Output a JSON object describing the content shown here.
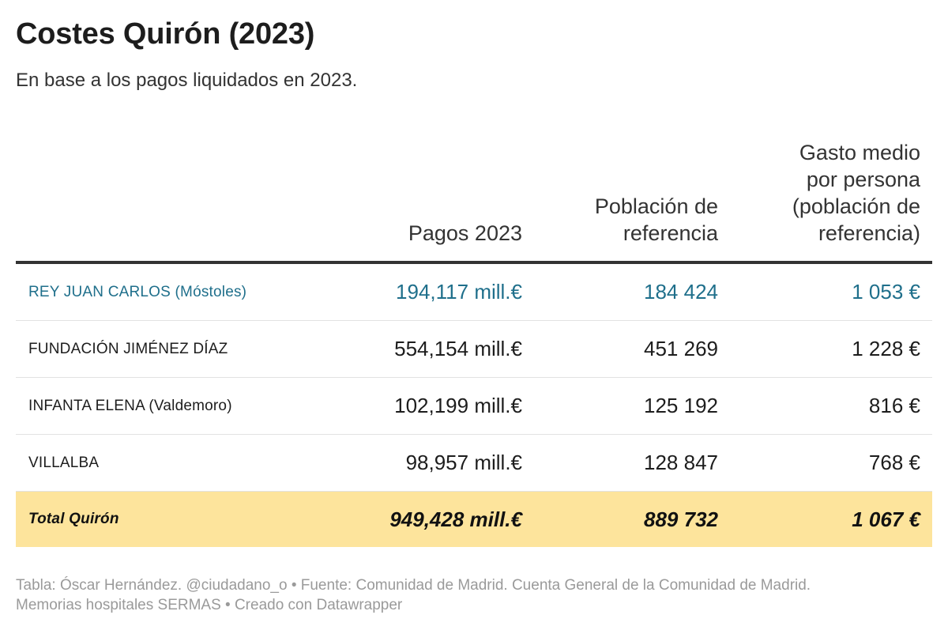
{
  "title": "Costes Quirón (2023)",
  "subtitle": "En base a los pagos liquidados en 2023.",
  "chart_data": {
    "type": "table",
    "columns": [
      "",
      "Pagos 2023",
      [
        "Población de",
        "referencia"
      ],
      [
        "Gasto medio",
        "por persona",
        "(población de",
        "referencia)"
      ]
    ],
    "rows": [
      {
        "name": "REY JUAN CARLOS (Móstoles)",
        "pagos": "194,117 mill.€",
        "poblacion": "184 424",
        "gasto": "1 053 €",
        "highlight": true
      },
      {
        "name": "FUNDACIÓN JIMÉNEZ DÍAZ",
        "pagos": "554,154 mill.€",
        "poblacion": "451 269",
        "gasto": "1 228 €"
      },
      {
        "name": "INFANTA ELENA (Valdemoro)",
        "pagos": "102,199 mill.€",
        "poblacion": "125 192",
        "gasto": "816 €"
      },
      {
        "name": "VILLALBA",
        "pagos": "98,957 mill.€",
        "poblacion": "128 847",
        "gasto": "768 €"
      }
    ],
    "total": {
      "name": "Total Quirón",
      "pagos": "949,428 mill.€",
      "poblacion": "889 732",
      "gasto": "1 067 €"
    }
  },
  "colors": {
    "highlight": "#1f6f8b",
    "total_bg": "#fde49c",
    "header_rule": "#333333"
  },
  "footer": {
    "line1": "Tabla: Óscar Hernández. @ciudadano_o • Fuente: Comunidad de Madrid. Cuenta General de la Comunidad de Madrid.",
    "line2": "Memorias hospitales SERMAS  • Creado con Datawrapper"
  }
}
